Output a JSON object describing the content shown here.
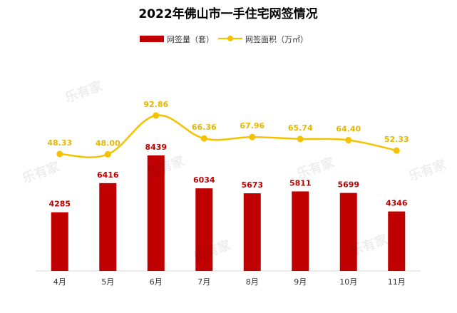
{
  "chart_data": {
    "type": "bar+line",
    "title": "2022年佛山市一手住宅网签情况",
    "categories": [
      "4月",
      "5月",
      "6月",
      "7月",
      "8月",
      "9月",
      "10月",
      "11月"
    ],
    "series": [
      {
        "name": "网签量（套）",
        "type": "bar",
        "color": "#c00000",
        "values": [
          4285,
          6416,
          8439,
          6034,
          5673,
          5811,
          5699,
          4346
        ],
        "labels": [
          "4285",
          "6416",
          "8439",
          "6034",
          "5673",
          "5811",
          "5699",
          "4346"
        ]
      },
      {
        "name": "网签面积（万㎡）",
        "type": "line",
        "color": "#f5c200",
        "values": [
          48.33,
          48.0,
          92.86,
          66.36,
          67.96,
          65.74,
          64.4,
          52.33
        ],
        "labels": [
          "48.33",
          "48.00",
          "92.86",
          "66.36",
          "67.96",
          "65.74",
          "64.40",
          "52.33"
        ]
      }
    ],
    "legend": "top-center",
    "grid": false,
    "watermark": "乐有家"
  }
}
